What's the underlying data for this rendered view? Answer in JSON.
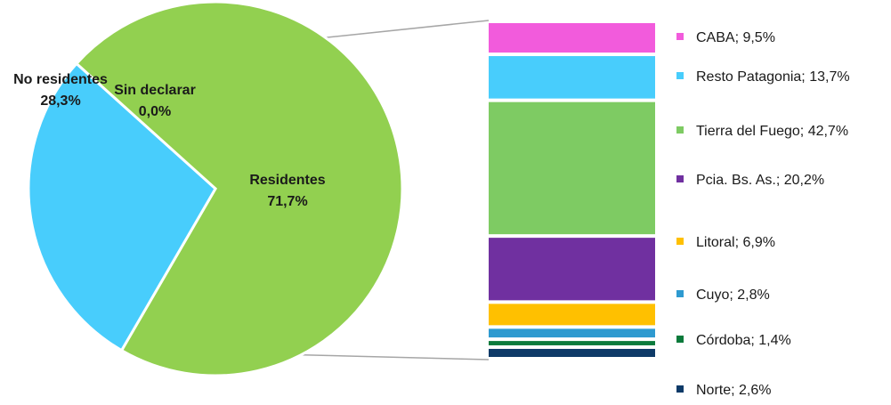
{
  "chart_data": [
    {
      "type": "pie",
      "categories": [
        "Residentes",
        "No residentes",
        "Sin declarar"
      ],
      "values": [
        71.7,
        28.3,
        0.0
      ],
      "value_labels": [
        "71,7%",
        "28,3%",
        "0,0%"
      ],
      "colors": [
        "#92d050",
        "#48cdfc",
        "#92d050"
      ]
    },
    {
      "type": "bar",
      "stacked": true,
      "categories": [
        "CABA",
        "Resto Patagonia",
        "Tierra del Fuego",
        "Pcia. Bs. As.",
        "Litoral",
        "Cuyo",
        "Córdoba",
        "Norte"
      ],
      "values": [
        9.5,
        13.7,
        42.7,
        20.2,
        6.9,
        2.8,
        1.4,
        2.6
      ],
      "legend_labels": [
        "CABA; 9,5%",
        "Resto Patagonia; 13,7%",
        "Tierra del Fuego; 42,7%",
        "Pcia. Bs. As.; 20,2%",
        "Litoral; 6,9%",
        "Cuyo; 2,8%",
        "Córdoba; 1,4%",
        "Norte; 2,6%"
      ],
      "colors": [
        "#f25bdc",
        "#48cdfc",
        "#7ecb63",
        "#7030a0",
        "#ffc000",
        "#2e9ad0",
        "#0b7a3b",
        "#0e3a68"
      ],
      "legend_position": "right"
    }
  ]
}
